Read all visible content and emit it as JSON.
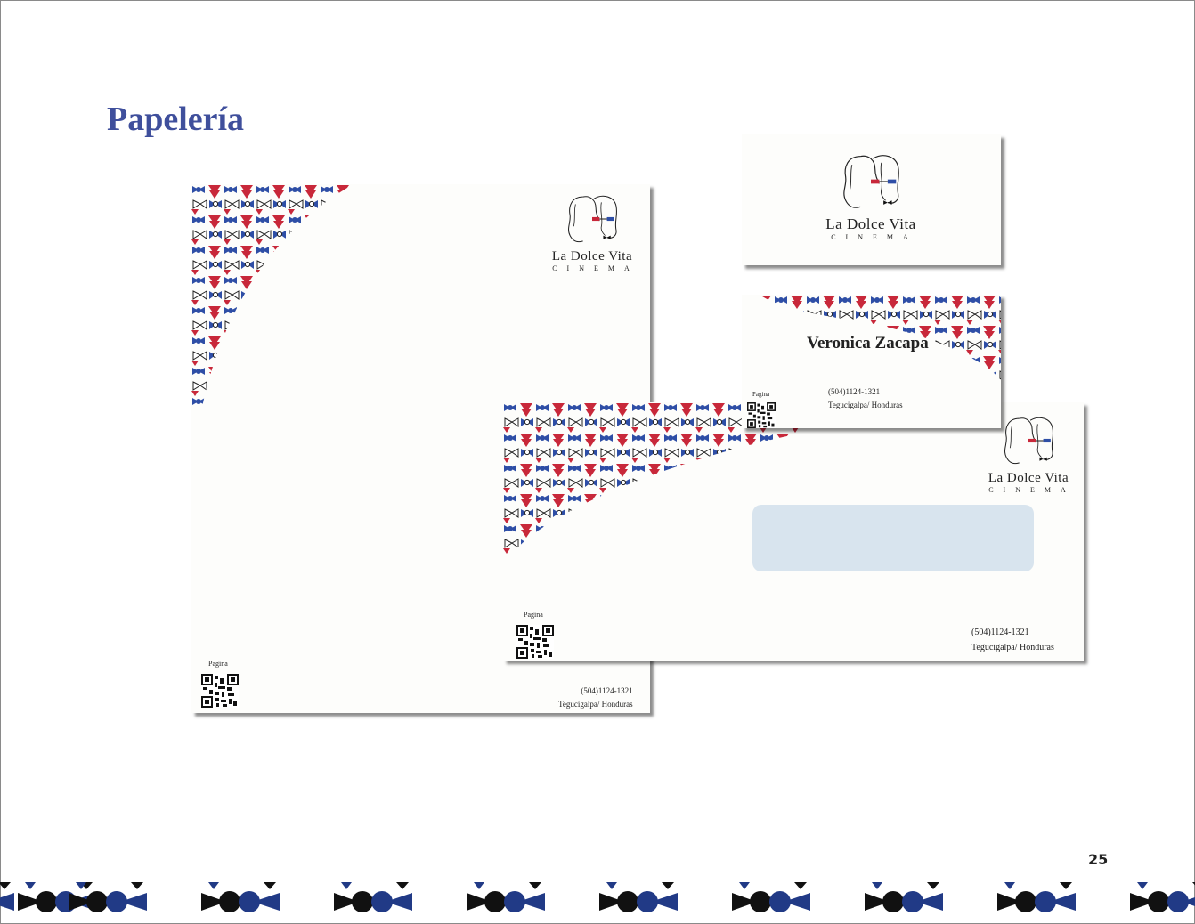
{
  "page": {
    "title": "Papelería",
    "page_number": "25"
  },
  "brand": {
    "name": "La Dolce Vita",
    "tagline": "CINEMA"
  },
  "letterhead": {
    "qr_label": "Pagina",
    "phone": "(504)1124-1321",
    "city": "Tegucigalpa/ Honduras"
  },
  "business_card": {
    "name": "Veronica Zacapa",
    "qr_label": "Pagina",
    "phone": "(504)1124-1321",
    "city": "Tegucigalpa/ Honduras"
  },
  "envelope": {
    "qr_label": "Pagina",
    "phone": "(504)1124-1321",
    "city": "Tegucigalpa/ Honduras"
  },
  "colors": {
    "title": "#3f4f9c",
    "pattern_blue": "#2e4ea6",
    "pattern_red": "#c8283a",
    "footer_navy": "#213a86",
    "envelope_window": "#d8e4ee"
  },
  "icons": [
    "bowtie-pattern",
    "woman-face-logo-icon",
    "qr-code-icon"
  ]
}
